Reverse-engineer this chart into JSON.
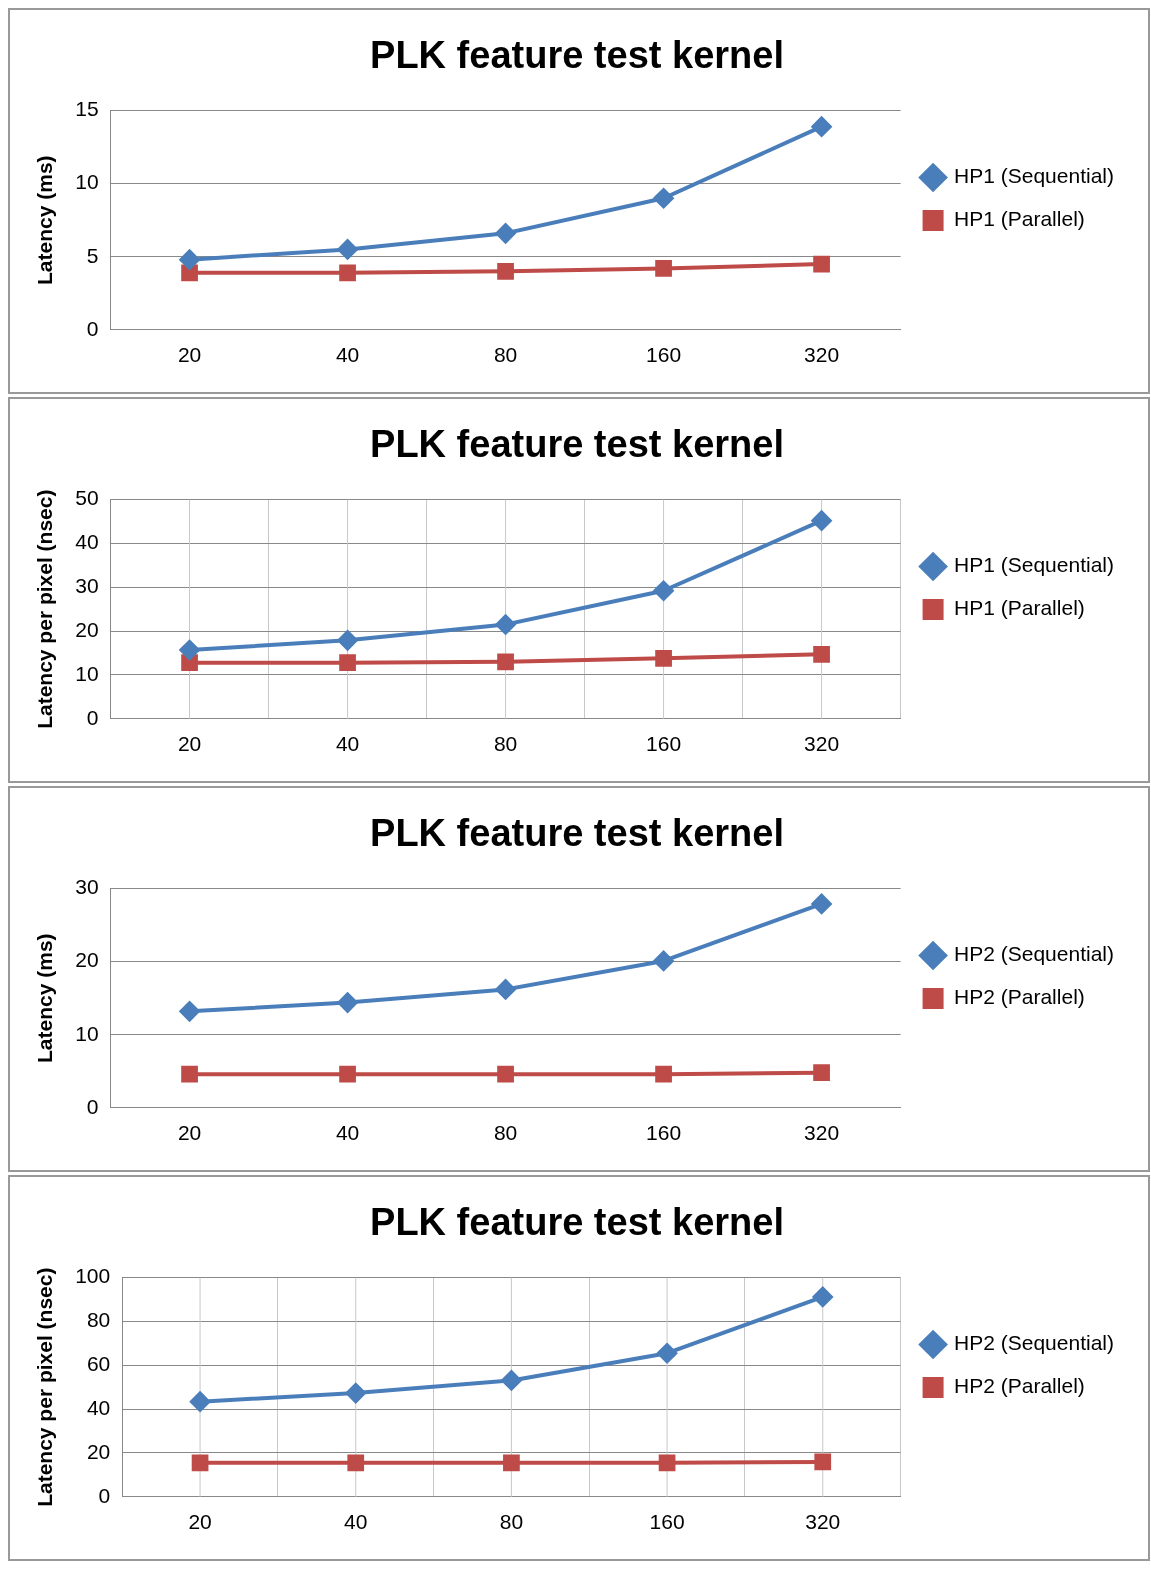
{
  "chart_data": [
    {
      "type": "line",
      "title": "PLK feature test kernel",
      "ylabel": "Latency (ms)",
      "categories": [
        "20",
        "40",
        "80",
        "160",
        "320"
      ],
      "ylim": [
        0,
        15
      ],
      "yticks": [
        0,
        5,
        10,
        15
      ],
      "grid": "y",
      "legend": "right",
      "series": [
        {
          "name": "HP1 (Sequential)",
          "color": "#4a7ebb",
          "marker": "diamond",
          "values": [
            4.8,
            5.5,
            6.6,
            9.0,
            13.9
          ]
        },
        {
          "name": "HP1 (Parallel)",
          "color": "#be4b48",
          "marker": "square",
          "values": [
            3.9,
            3.9,
            4.0,
            4.2,
            4.5
          ]
        }
      ]
    },
    {
      "type": "line",
      "title": "PLK feature test kernel",
      "ylabel": "Latency per pixel (nsec)",
      "categories": [
        "20",
        "40",
        "80",
        "160",
        "320"
      ],
      "ylim": [
        0,
        50
      ],
      "yticks": [
        0,
        10,
        20,
        30,
        40,
        50
      ],
      "grid": true,
      "legend": "right",
      "series": [
        {
          "name": "HP1 (Sequential)",
          "color": "#4a7ebb",
          "marker": "diamond",
          "values": [
            15.7,
            17.9,
            21.5,
            29.2,
            45.2
          ]
        },
        {
          "name": "HP1 (Parallel)",
          "color": "#be4b48",
          "marker": "square",
          "values": [
            12.8,
            12.8,
            13.0,
            13.8,
            14.7
          ]
        }
      ]
    },
    {
      "type": "line",
      "title": "PLK feature test kernel",
      "ylabel": "Latency (ms)",
      "categories": [
        "20",
        "40",
        "80",
        "160",
        "320"
      ],
      "ylim": [
        0,
        30
      ],
      "yticks": [
        0,
        10,
        20,
        30
      ],
      "grid": "y",
      "legend": "right",
      "series": [
        {
          "name": "HP2 (Sequential)",
          "color": "#4a7ebb",
          "marker": "diamond",
          "values": [
            13.2,
            14.4,
            16.2,
            20.1,
            27.9
          ]
        },
        {
          "name": "HP2 (Parallel)",
          "color": "#be4b48",
          "marker": "square",
          "values": [
            4.6,
            4.6,
            4.6,
            4.6,
            4.8
          ]
        }
      ]
    },
    {
      "type": "line",
      "title": "PLK feature test kernel",
      "ylabel": "Latency per pixel (nsec)",
      "categories": [
        "20",
        "40",
        "80",
        "160",
        "320"
      ],
      "ylim": [
        0,
        100
      ],
      "yticks": [
        0,
        20,
        40,
        60,
        80,
        100
      ],
      "grid": true,
      "legend": "right",
      "series": [
        {
          "name": "HP2 (Sequential)",
          "color": "#4a7ebb",
          "marker": "diamond",
          "values": [
            43.4,
            47.3,
            53.1,
            65.5,
            91.2
          ]
        },
        {
          "name": "HP2 (Parallel)",
          "color": "#be4b48",
          "marker": "square",
          "values": [
            15.5,
            15.5,
            15.5,
            15.5,
            15.9
          ]
        }
      ]
    }
  ]
}
